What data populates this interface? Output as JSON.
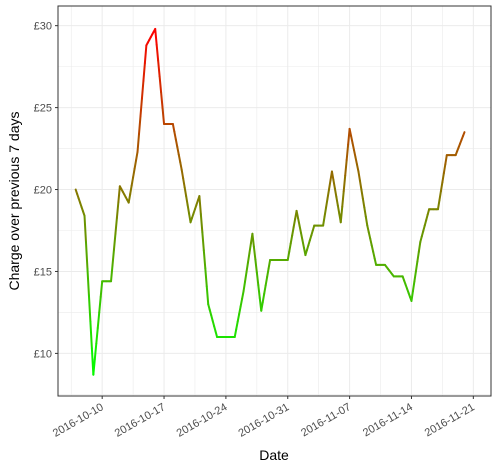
{
  "chart_data": {
    "type": "line",
    "xlabel": "Date",
    "ylabel": "Charge over previous 7 days",
    "x_tick_labels": [
      "2016-10-10",
      "2016-10-17",
      "2016-10-24",
      "2016-10-31",
      "2016-11-07",
      "2016-11-14",
      "2016-11-21"
    ],
    "y_tick_labels": [
      "£10",
      "£15",
      "£20",
      "£25",
      "£30"
    ],
    "y_ticks": [
      10,
      15,
      20,
      25,
      30
    ],
    "xlim": [
      "2016-10-05",
      "2016-11-23"
    ],
    "ylim": [
      7.4,
      31.2
    ],
    "grid": true,
    "legend": "none",
    "color_scale": {
      "low": "#00ff00",
      "high": "#ff0000",
      "domain": [
        8.7,
        29.8
      ]
    },
    "series": [
      {
        "x": [
          "2016-10-07",
          "2016-10-08",
          "2016-10-09",
          "2016-10-10",
          "2016-10-11",
          "2016-10-12",
          "2016-10-13",
          "2016-10-14",
          "2016-10-15",
          "2016-10-16",
          "2016-10-17",
          "2016-10-18",
          "2016-10-19",
          "2016-10-20",
          "2016-10-21",
          "2016-10-22",
          "2016-10-23",
          "2016-10-24",
          "2016-10-25",
          "2016-10-26",
          "2016-10-27",
          "2016-10-28",
          "2016-10-29",
          "2016-10-30",
          "2016-10-31",
          "2016-11-01",
          "2016-11-02",
          "2016-11-03",
          "2016-11-04",
          "2016-11-05",
          "2016-11-06",
          "2016-11-07",
          "2016-11-08",
          "2016-11-09",
          "2016-11-10",
          "2016-11-11",
          "2016-11-12",
          "2016-11-13",
          "2016-11-14",
          "2016-11-15",
          "2016-11-16",
          "2016-11-17",
          "2016-11-18",
          "2016-11-19",
          "2016-11-20"
        ],
        "values": [
          20.0,
          18.4,
          8.7,
          14.4,
          14.4,
          20.2,
          19.2,
          22.3,
          28.8,
          29.8,
          24.0,
          24.0,
          21.2,
          18.0,
          19.6,
          13.0,
          11.0,
          11.0,
          11.0,
          13.8,
          17.3,
          12.6,
          15.7,
          15.7,
          15.7,
          18.7,
          16.0,
          17.8,
          17.8,
          21.1,
          18.0,
          23.7,
          21.1,
          17.8,
          15.4,
          15.4,
          14.7,
          14.7,
          13.2,
          16.8,
          18.8,
          18.8,
          22.1,
          22.1,
          23.5
        ]
      }
    ]
  }
}
